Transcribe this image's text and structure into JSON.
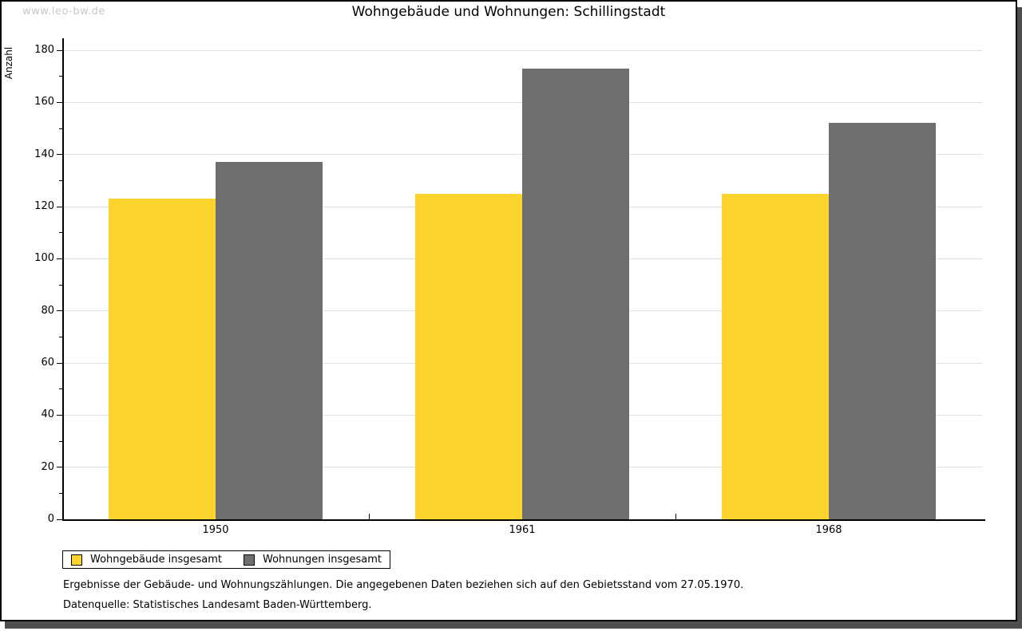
{
  "watermark": "www.leo-bw.de",
  "title": "Wohngebäude und Wohnungen: Schillingstadt",
  "y_axis_title": "Anzahl",
  "footnotes": {
    "line1": "Ergebnisse der Gebäude- und Wohnungszählungen. Die angegebenen Daten beziehen sich auf den Gebietsstand vom 27.05.1970.",
    "line2": "Datenquelle: Statistisches Landesamt Baden-Württemberg."
  },
  "colors": {
    "bar_yellow": "#fcd42d",
    "bar_gray": "#6e6e6e",
    "gridline": "#e2e2e2",
    "axis": "#000000",
    "watermark_gray": "#c9c9c9",
    "shadow_gray": "#4e4e4e"
  },
  "chart_data": {
    "type": "bar",
    "title": "Wohngebäude und Wohnungen: Schillingstadt",
    "categories": [
      "1950",
      "1961",
      "1968"
    ],
    "series": [
      {
        "name": "Wohngebäude insgesamt",
        "color": "#fcd42d",
        "values": [
          123,
          125,
          125
        ]
      },
      {
        "name": "Wohnungen insgesamt",
        "color": "#6e6e6e",
        "values": [
          137,
          173,
          152
        ]
      }
    ],
    "xlabel": "",
    "ylabel": "Anzahl",
    "ylim": [
      0,
      180
    ],
    "ytick_step": 20,
    "minor_tick_step": 10,
    "grid": true,
    "legend_position": "bottom-left"
  }
}
